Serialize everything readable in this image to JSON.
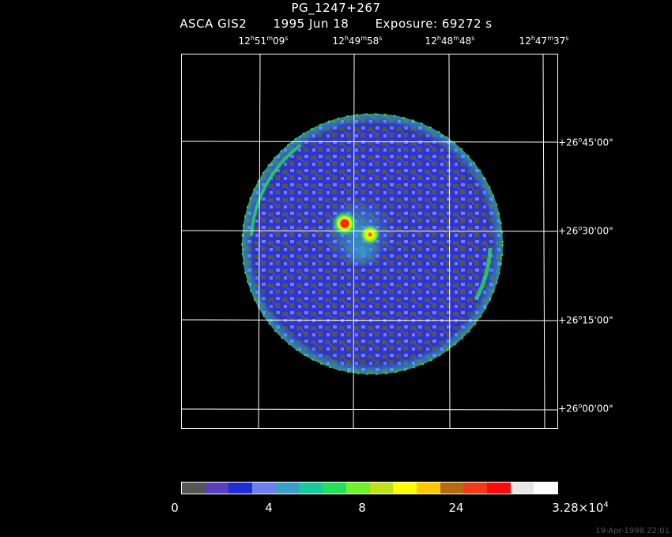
{
  "header": {
    "object": "PG_1247+267",
    "instrument": "ASCA GIS2",
    "date": "1995 Jun 18",
    "exposure": "Exposure: 69272 s"
  },
  "ra_ticks": [
    {
      "h": "12",
      "m": "51",
      "s": "09"
    },
    {
      "h": "12",
      "m": "49",
      "s": "58"
    },
    {
      "h": "12",
      "m": "48",
      "s": "48"
    },
    {
      "h": "12",
      "m": "47",
      "s": "37"
    }
  ],
  "dec_ticks": [
    {
      "deg": "+26",
      "min": "45'00\""
    },
    {
      "deg": "+26",
      "min": "30'00\""
    },
    {
      "deg": "+26",
      "min": "15'00\""
    },
    {
      "deg": "+26",
      "min": "00'00\""
    }
  ],
  "colorbar": {
    "labels": [
      "0",
      "4",
      "8",
      "24"
    ],
    "max_base": "3.28×10",
    "max_exp": "4",
    "colors": [
      "#555555",
      "#5a3fc0",
      "#1f2fd8",
      "#6f7ff0",
      "#3b9fc8",
      "#19c9a0",
      "#22e05a",
      "#6ff02a",
      "#bfe01a",
      "#ffff00",
      "#ffc800",
      "#b86a10",
      "#f03a18",
      "#ff0a0a",
      "#e6e6e6",
      "#ffffff"
    ]
  },
  "timestamp": "19-Apr-1998 22:01"
}
